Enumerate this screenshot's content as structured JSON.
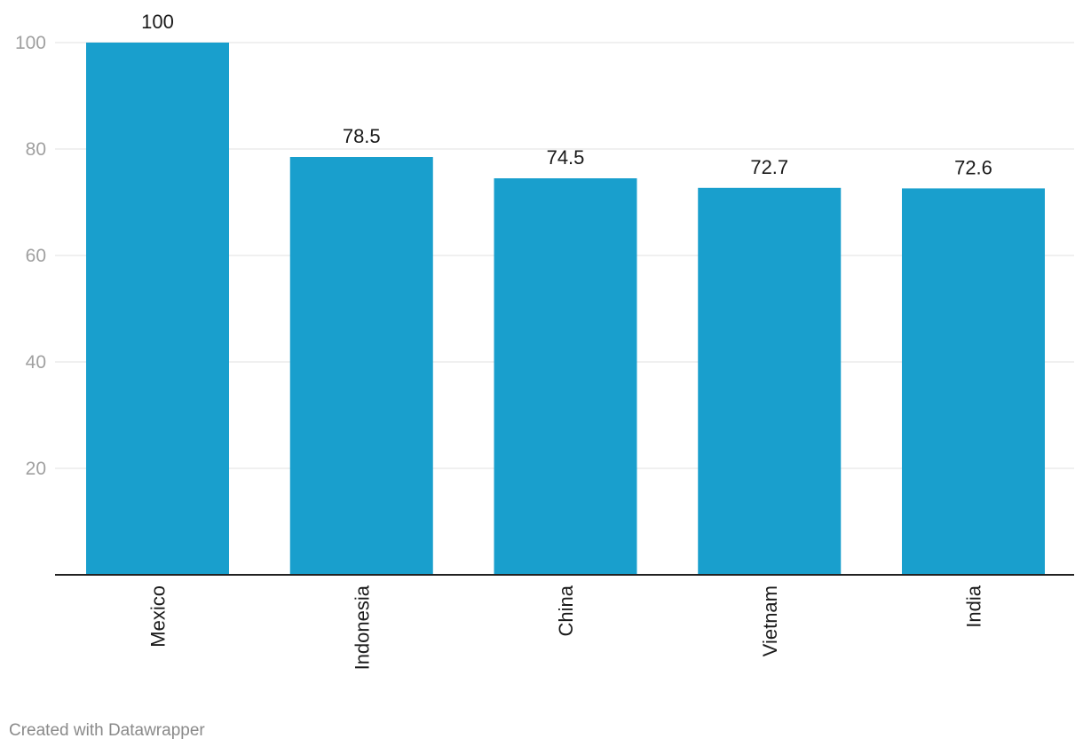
{
  "chart_data": {
    "type": "bar",
    "categories": [
      "Mexico",
      "Indonesia",
      "China",
      "Vietnam",
      "India"
    ],
    "values": [
      100,
      78.5,
      74.5,
      72.7,
      72.6
    ],
    "value_labels": [
      "100",
      "78.5",
      "74.5",
      "72.7",
      "72.6"
    ],
    "ylim": [
      0,
      100
    ],
    "y_ticks": [
      20,
      40,
      60,
      80,
      100
    ],
    "grid": true,
    "bar_color": "#199fcd",
    "category_label_orientation": "vertical",
    "title": "",
    "xlabel": "",
    "ylabel": ""
  },
  "footer": {
    "credit": "Created with Datawrapper"
  }
}
